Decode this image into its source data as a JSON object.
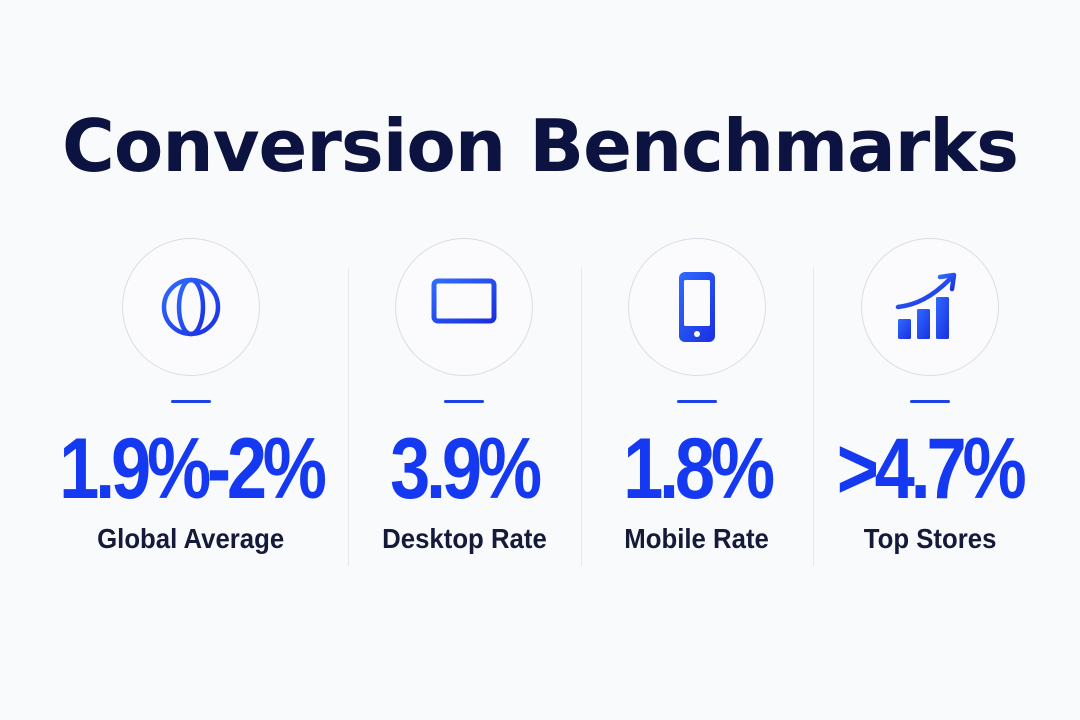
{
  "title": "Conversion Benchmarks",
  "stats": [
    {
      "icon": "globe-icon",
      "value": "1.9%-2%",
      "label": "Global Average"
    },
    {
      "icon": "desktop-monitor-icon",
      "value": "3.9%",
      "label": "Desktop Rate"
    },
    {
      "icon": "smartphone-icon",
      "value": "1.8%",
      "label": "Mobile Rate"
    },
    {
      "icon": "rising-bar-chart-icon",
      "value": ">4.7%",
      "label": "Top Stores"
    }
  ],
  "colors": {
    "accent": "#1539f0",
    "title": "#0d1340",
    "label": "#151a3a",
    "background": "#f9fafc"
  }
}
